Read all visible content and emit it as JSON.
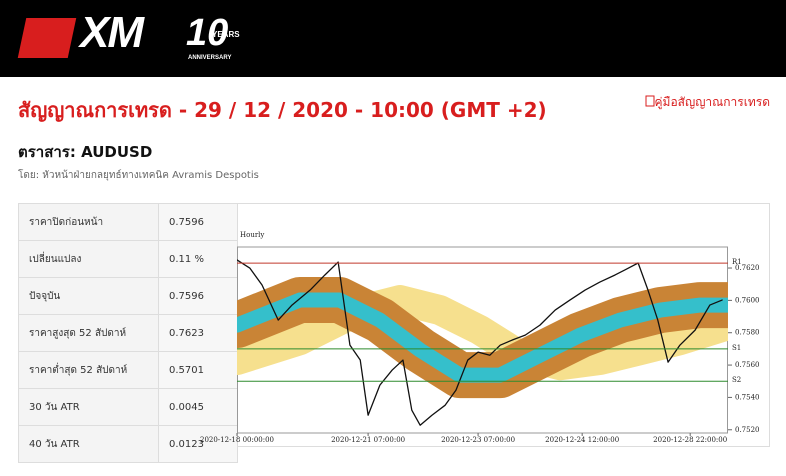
{
  "header": {
    "logo": "XM",
    "badge": "10",
    "badge_top": "YEARS",
    "badge_bottom": "ANNIVERSARY"
  },
  "title": "สัญญาณการเทรด - 29 / 12 / 2020 - 10:00 (GMT +2)",
  "guide_link": "คู่มือสัญญาณการเทรด",
  "instrument": "ตราสาร: AUDUSD",
  "author": "โดย: หัวหน้าฝ่ายกลยุทธ์ทางเทคนิค Avramis Despotis",
  "table": {
    "rows": [
      [
        "ราคาปิดก่อนหน้า",
        "0.7596"
      ],
      [
        "เปลี่ยนแปลง",
        "0.11 %"
      ],
      [
        "ปัจจุบัน",
        "0.7596"
      ],
      [
        "ราคาสูงสุด 52 สัปดาห์",
        "0.7623"
      ],
      [
        "ราคาต่ำสุด 52 สัปดาห์",
        "0.5701"
      ],
      [
        "30 วัน ATR",
        "0.0045"
      ],
      [
        "40 วัน ATR",
        "0.0123"
      ]
    ]
  },
  "chart_data": {
    "type": "line",
    "title": "Hourly",
    "xlim": [
      0,
      100
    ],
    "xticks": [
      {
        "value": 0,
        "label": "2020-12-18 00:00:00"
      },
      {
        "value": 26.7,
        "label": "2020-12-21 07:00:00"
      },
      {
        "value": 49.1,
        "label": "2020-12-23 07:00:00"
      },
      {
        "value": 70.3,
        "label": "2020-12-24 12:00:00"
      },
      {
        "value": 92.3,
        "label": "2020-12-28 22:00:00"
      }
    ],
    "ylim": [
      0.7518,
      0.7633
    ],
    "yticks": [
      {
        "value": 0.752,
        "label": "0.7520"
      },
      {
        "value": 0.754,
        "label": "0.7540"
      },
      {
        "value": 0.756,
        "label": "0.7560"
      },
      {
        "value": 0.758,
        "label": "0.7580"
      },
      {
        "value": 0.76,
        "label": "0.7600"
      },
      {
        "value": 0.762,
        "label": "0.7620"
      }
    ],
    "levels": [
      {
        "label": "R1",
        "value": 0.7623,
        "color": "#c0392b"
      },
      {
        "label": "S1",
        "value": 0.757,
        "color": "#2e8b2e"
      },
      {
        "label": "S2",
        "value": 0.755,
        "color": "#2e8b2e"
      }
    ],
    "series": [
      {
        "color": "#f6e08e",
        "width": 30,
        "x": [
          0,
          12.8,
          25.1,
          33.2,
          41.3,
          49.5,
          57.6,
          65.8,
          73.9,
          82.1,
          90.2,
          100
        ],
        "values": [
          0.75631,
          0.75754,
          0.7594,
          0.76002,
          0.7594,
          0.75816,
          0.75661,
          0.75599,
          0.75631,
          0.75692,
          0.75754,
          0.75847
        ]
      },
      {
        "color": "#c98436",
        "width": 46,
        "x": [
          0,
          12.8,
          20.9,
          29.1,
          37.3,
          45.4,
          53.6,
          61.7,
          69.9,
          78,
          86.2,
          94.3,
          100
        ],
        "values": [
          0.75847,
          0.76002,
          0.76002,
          0.75878,
          0.75692,
          0.75538,
          0.75538,
          0.75661,
          0.75785,
          0.75878,
          0.7594,
          0.75971,
          0.75971
        ]
      },
      {
        "color": "#35bfcb",
        "width": 15,
        "x": [
          0,
          12.8,
          20.9,
          29.1,
          37.3,
          45.4,
          53.6,
          61.7,
          69.9,
          78,
          86.2,
          94.3,
          100
        ],
        "values": [
          0.75847,
          0.76002,
          0.76002,
          0.75878,
          0.75692,
          0.75538,
          0.75538,
          0.75661,
          0.75785,
          0.75878,
          0.7594,
          0.75971,
          0.75971
        ]
      },
      {
        "color": "#111111",
        "width": 1.3,
        "x": [
          0,
          2.6,
          5.1,
          8.4,
          11.2,
          14.9,
          17.9,
          20.6,
          23,
          25.1,
          26.7,
          29.1,
          31.6,
          33.8,
          35.6,
          37.3,
          39.7,
          42.4,
          44.6,
          47,
          49.1,
          51.5,
          53.6,
          56,
          58.7,
          61.7,
          64.8,
          67.8,
          70.9,
          73.9,
          77,
          79,
          81.7,
          83.7,
          85.7,
          87.8,
          90.2,
          93.3,
          96.3,
          98.8
        ],
        "values": [
          0.7625,
          0.762,
          0.76095,
          0.75878,
          0.75971,
          0.76064,
          0.76157,
          0.76237,
          0.75723,
          0.75631,
          0.7529,
          0.75476,
          0.75569,
          0.75631,
          0.75321,
          0.75228,
          0.7529,
          0.75352,
          0.75445,
          0.75631,
          0.7568,
          0.75661,
          0.75723,
          0.75754,
          0.75785,
          0.75847,
          0.7594,
          0.76002,
          0.76064,
          0.76113,
          0.76157,
          0.76188,
          0.76231,
          0.76064,
          0.75878,
          0.75618,
          0.75723,
          0.75816,
          0.75971,
          0.76002
        ]
      }
    ]
  }
}
